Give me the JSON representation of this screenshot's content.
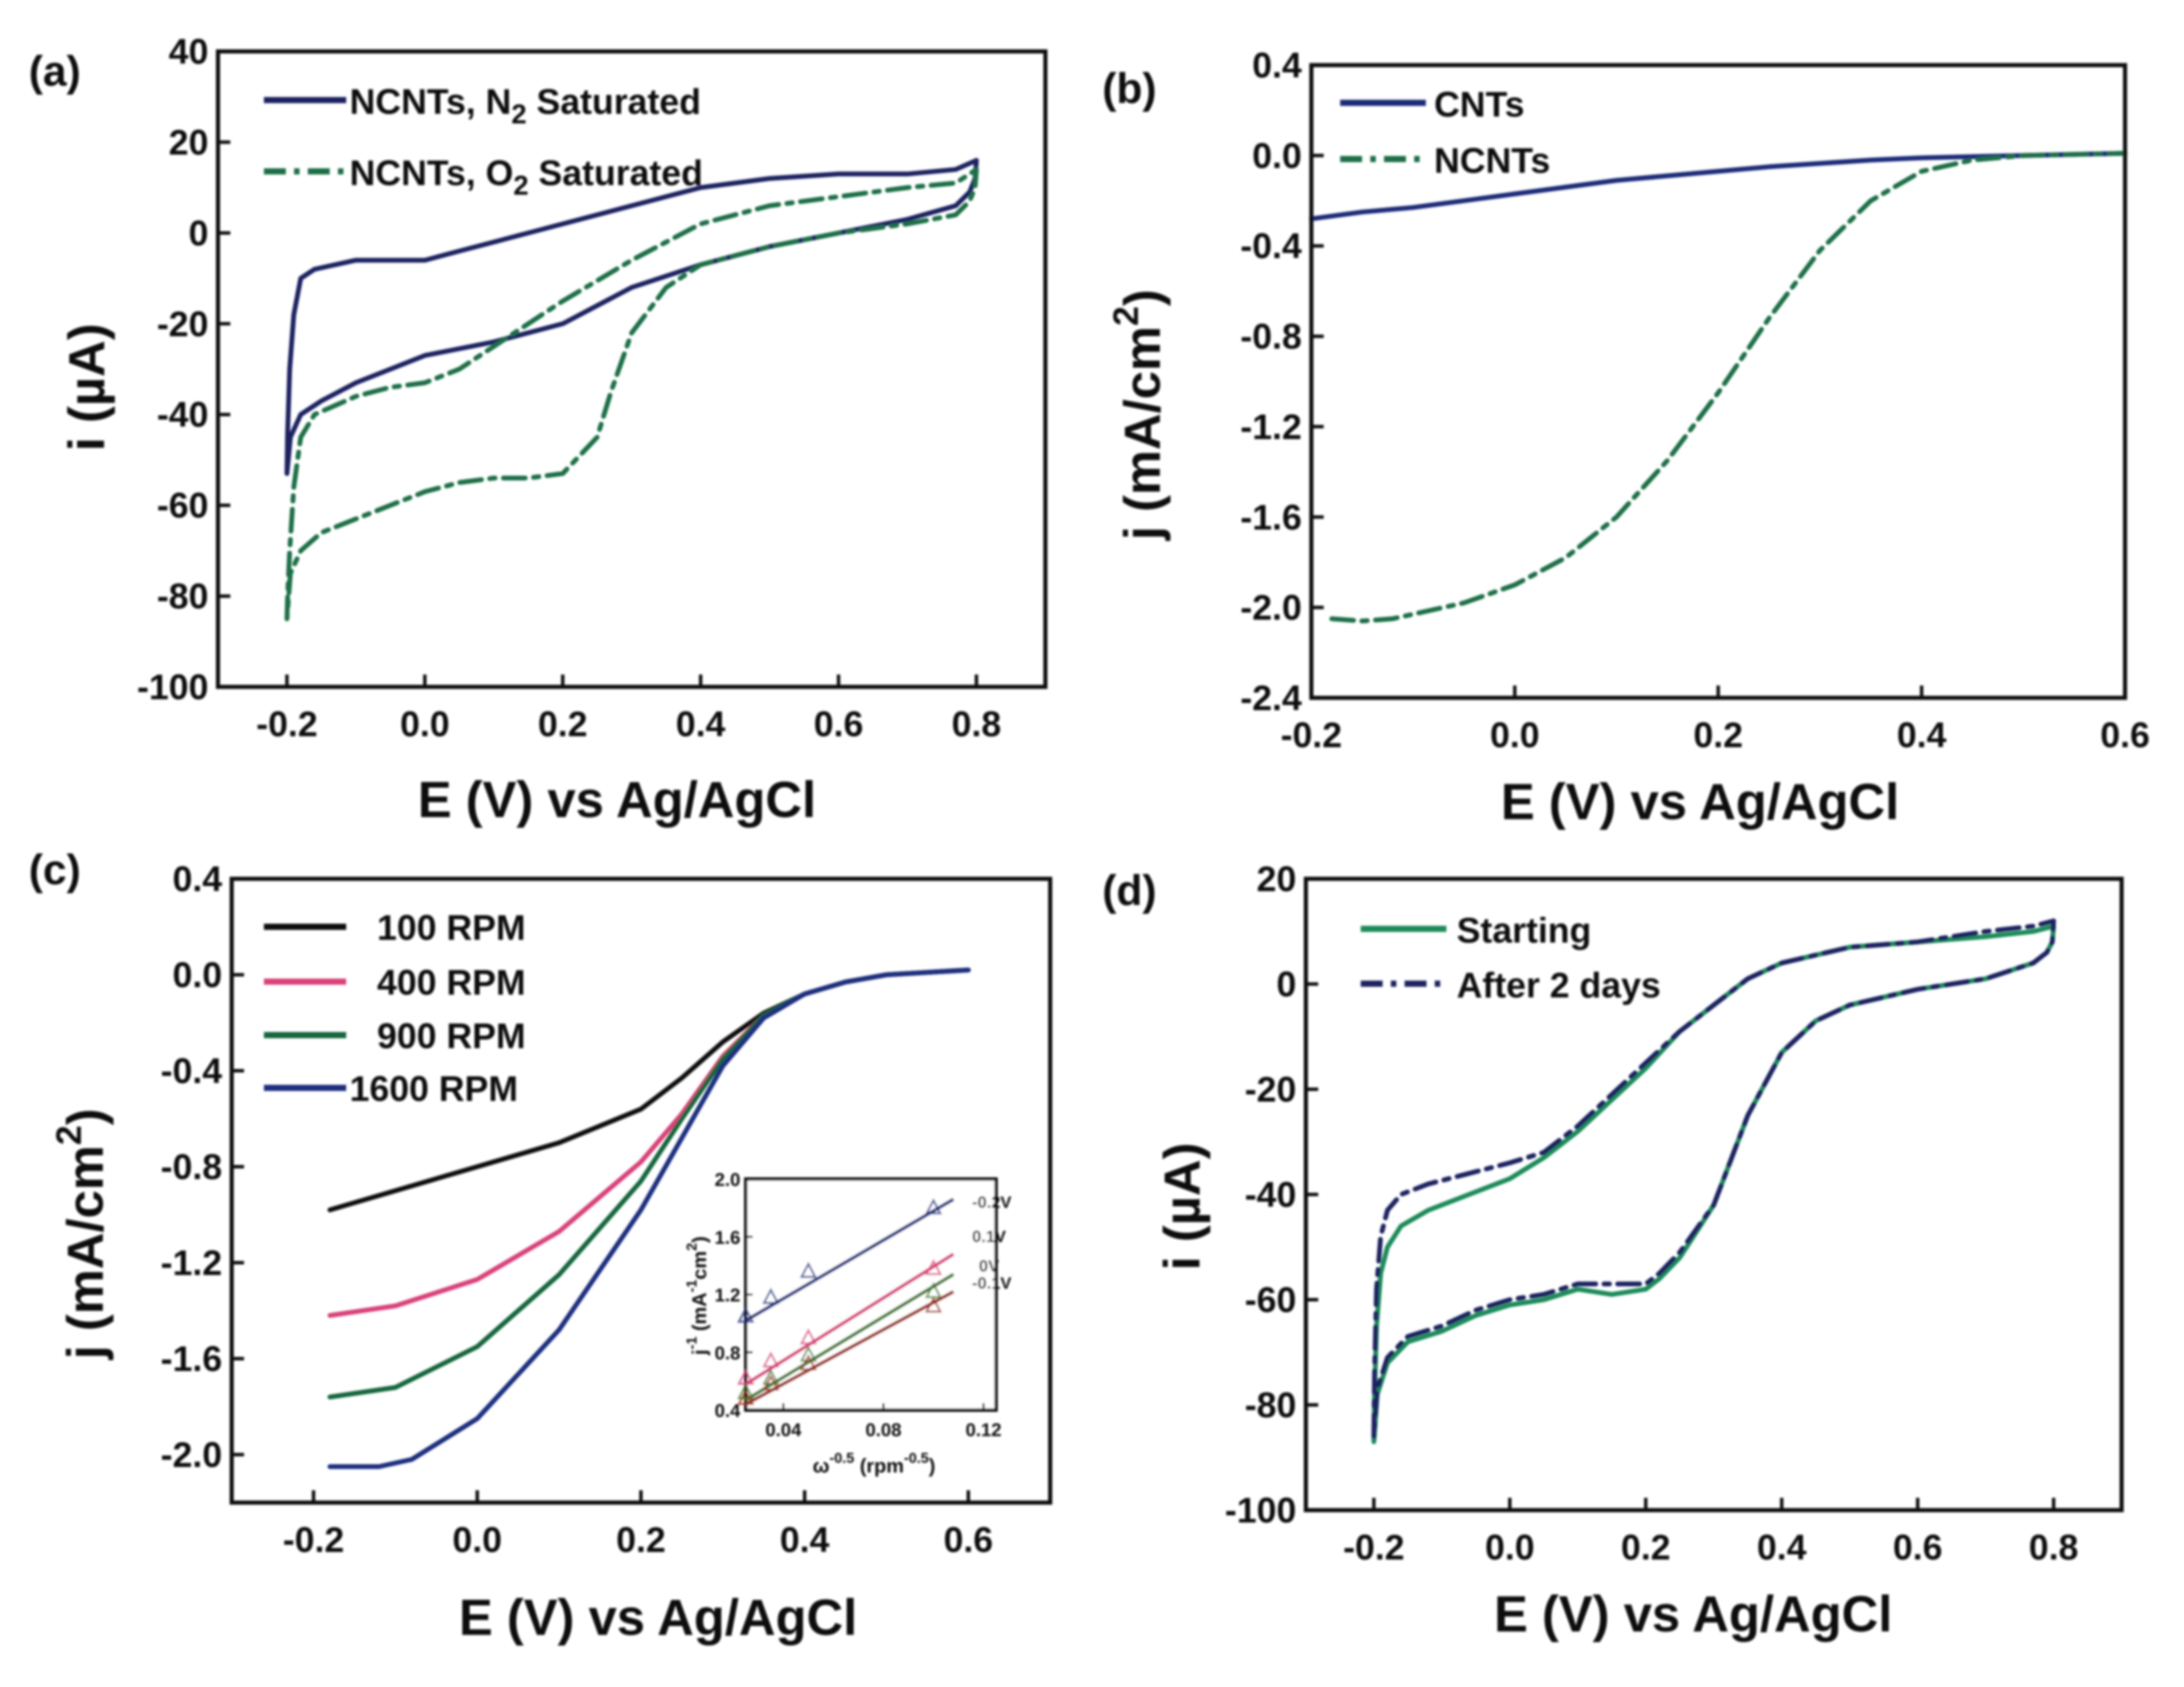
{
  "chart_data": [
    {
      "panel": "(a)",
      "type": "line",
      "xlabel": "E (V) vs Ag/AgCl",
      "ylabel": "i (µA)",
      "xlim": [
        -0.3,
        0.9
      ],
      "ylim": [
        -100,
        40
      ],
      "xticks": [
        -0.2,
        0.0,
        0.2,
        0.4,
        0.6,
        0.8
      ],
      "yticks": [
        -100,
        -80,
        -60,
        -40,
        -20,
        0,
        20,
        40
      ],
      "xtick_labels": [
        "-0.2",
        "0.0",
        "0.2",
        "0.4",
        "0.6",
        "0.8"
      ],
      "ytick_labels": [
        "-100",
        "-80",
        "-60",
        "-40",
        "-20",
        "0",
        "20",
        "40"
      ],
      "legend_pos": "top-left",
      "series": [
        {
          "name": "NCNTs,  N2 Saturated",
          "label_main": "NCNTs,  N",
          "label_sub": "2",
          "label_rest": " Saturated",
          "style": "solid",
          "color": "#1c2460",
          "x": [
            -0.2,
            -0.199,
            -0.196,
            -0.19,
            -0.18,
            -0.16,
            -0.13,
            -0.1,
            -0.05,
            0.0,
            0.05,
            0.1,
            0.2,
            0.3,
            0.4,
            0.5,
            0.6,
            0.7,
            0.77,
            0.8,
            0.798,
            0.79,
            0.77,
            0.7,
            0.6,
            0.5,
            0.4,
            0.3,
            0.2,
            0.1,
            0.0,
            -0.05,
            -0.1,
            -0.15,
            -0.18,
            -0.195,
            -0.2
          ],
          "y": [
            -53,
            -44,
            -30,
            -18,
            -10,
            -8,
            -7,
            -6,
            -6,
            -6,
            -4,
            -2,
            2,
            6,
            10,
            12,
            13,
            13,
            14,
            16,
            12,
            9,
            6,
            3,
            0,
            -3,
            -7,
            -12,
            -20,
            -24,
            -27,
            -30,
            -33,
            -37,
            -40,
            -45,
            -53
          ]
        },
        {
          "name": "NCNTs,  O2 Saturated",
          "label_main": "NCNTs,  O",
          "label_sub": "2",
          "label_rest": " Saturated",
          "style": "dashdot",
          "color": "#1a6e46",
          "x": [
            -0.2,
            -0.199,
            -0.196,
            -0.19,
            -0.18,
            -0.16,
            -0.13,
            -0.1,
            -0.05,
            0.0,
            0.05,
            0.1,
            0.2,
            0.3,
            0.4,
            0.5,
            0.6,
            0.7,
            0.77,
            0.8,
            0.798,
            0.79,
            0.77,
            0.7,
            0.6,
            0.5,
            0.4,
            0.35,
            0.3,
            0.27,
            0.25,
            0.2,
            0.15,
            0.1,
            0.05,
            0.0,
            -0.05,
            -0.1,
            -0.15,
            -0.18,
            -0.195,
            -0.2
          ],
          "y": [
            -85,
            -80,
            -70,
            -56,
            -45,
            -40,
            -38,
            -36,
            -34,
            -33,
            -30,
            -25,
            -15,
            -6,
            2,
            6,
            8,
            10,
            11,
            14,
            10,
            7,
            4,
            2,
            0,
            -3,
            -7,
            -12,
            -22,
            -35,
            -45,
            -53,
            -54,
            -54,
            -55,
            -57,
            -60,
            -63,
            -66,
            -70,
            -75,
            -85
          ]
        }
      ]
    },
    {
      "panel": "(b)",
      "type": "line",
      "xlabel": "E (V) vs Ag/AgCl",
      "ylabel": "j (mA/cm2)",
      "ylabel_main": "j (mA/cm",
      "ylabel_sup": "2",
      "ylabel_end": ")",
      "xlim": [
        -0.2,
        0.6
      ],
      "ylim": [
        -2.4,
        0.4
      ],
      "xticks": [
        -0.2,
        0.0,
        0.2,
        0.4,
        0.6
      ],
      "yticks": [
        -2.4,
        -2.0,
        -1.6,
        -1.2,
        -0.8,
        -0.4,
        0.0,
        0.4
      ],
      "xtick_labels": [
        "-0.2",
        "0.0",
        "0.2",
        "0.4",
        "0.6"
      ],
      "ytick_labels": [
        "-2.4",
        "-2.0",
        "-1.6",
        "-1.2",
        "-0.8",
        "-0.4",
        "0.0",
        "0.4"
      ],
      "legend_pos": "top-left",
      "series": [
        {
          "name": "CNTs",
          "style": "solid",
          "color": "#1c2a78",
          "x": [
            -0.2,
            -0.15,
            -0.1,
            -0.05,
            0.0,
            0.05,
            0.1,
            0.15,
            0.2,
            0.25,
            0.3,
            0.35,
            0.4,
            0.45,
            0.5,
            0.55,
            0.6
          ],
          "y": [
            -0.28,
            -0.25,
            -0.23,
            -0.2,
            -0.17,
            -0.14,
            -0.11,
            -0.09,
            -0.07,
            -0.05,
            -0.035,
            -0.02,
            -0.01,
            -0.005,
            0.0,
            0.005,
            0.01
          ]
        },
        {
          "name": "NCNTs",
          "style": "dashdot",
          "color": "#1a6e46",
          "x": [
            -0.18,
            -0.15,
            -0.12,
            -0.1,
            -0.05,
            0.0,
            0.05,
            0.1,
            0.15,
            0.2,
            0.25,
            0.3,
            0.35,
            0.4,
            0.45,
            0.5,
            0.55,
            0.6
          ],
          "y": [
            -2.05,
            -2.06,
            -2.05,
            -2.03,
            -1.98,
            -1.9,
            -1.78,
            -1.6,
            -1.35,
            -1.05,
            -0.72,
            -0.42,
            -0.2,
            -0.07,
            -0.02,
            0.0,
            0.005,
            0.01
          ]
        }
      ]
    },
    {
      "panel": "(c)",
      "type": "line",
      "xlabel": "E (V) vs Ag/AgCl",
      "ylabel": "j (mA/cm2)",
      "ylabel_main": "j (mA/cm",
      "ylabel_sup": "2",
      "ylabel_end": ")",
      "xlim": [
        -0.3,
        0.7
      ],
      "ylim": [
        -2.2,
        0.4
      ],
      "xticks": [
        -0.2,
        0.0,
        0.2,
        0.4,
        0.6
      ],
      "yticks": [
        -2.0,
        -1.6,
        -1.2,
        -0.8,
        -0.4,
        0.0,
        0.4
      ],
      "xtick_labels": [
        "-0.2",
        "0.0",
        "0.2",
        "0.4",
        "0.6"
      ],
      "ytick_labels": [
        "-2.0",
        "-1.6",
        "-1.2",
        "-0.8",
        "-0.4",
        "0.0",
        "0.4"
      ],
      "legend_pos": "top-left",
      "series": [
        {
          "name": "100 RPM",
          "style": "solid",
          "color": "#111111",
          "x": [
            -0.18,
            -0.1,
            0.0,
            0.1,
            0.2,
            0.25,
            0.3,
            0.35,
            0.4,
            0.45,
            0.5,
            0.55,
            0.6
          ],
          "y": [
            -0.98,
            -0.9,
            -0.8,
            -0.7,
            -0.56,
            -0.43,
            -0.28,
            -0.16,
            -0.08,
            -0.03,
            0.0,
            0.01,
            0.02
          ]
        },
        {
          "name": "400 RPM",
          "style": "solid",
          "color": "#d8427a",
          "x": [
            -0.18,
            -0.1,
            0.0,
            0.1,
            0.2,
            0.25,
            0.3,
            0.35,
            0.4,
            0.45,
            0.5,
            0.55,
            0.6
          ],
          "y": [
            -1.42,
            -1.38,
            -1.27,
            -1.07,
            -0.78,
            -0.58,
            -0.34,
            -0.17,
            -0.08,
            -0.03,
            0.0,
            0.01,
            0.02
          ]
        },
        {
          "name": "900 RPM",
          "style": "solid",
          "color": "#17663e",
          "x": [
            -0.18,
            -0.1,
            0.0,
            0.1,
            0.2,
            0.25,
            0.3,
            0.35,
            0.4,
            0.45,
            0.5,
            0.55,
            0.6
          ],
          "y": [
            -1.76,
            -1.72,
            -1.55,
            -1.25,
            -0.86,
            -0.6,
            -0.35,
            -0.17,
            -0.08,
            -0.03,
            0.0,
            0.01,
            0.02
          ]
        },
        {
          "name": "1600 RPM",
          "style": "solid",
          "color": "#1c2e7e",
          "x": [
            -0.18,
            -0.12,
            -0.08,
            0.0,
            0.1,
            0.2,
            0.25,
            0.3,
            0.35,
            0.4,
            0.45,
            0.5,
            0.55,
            0.6
          ],
          "y": [
            -2.05,
            -2.05,
            -2.02,
            -1.85,
            -1.48,
            -0.98,
            -0.68,
            -0.38,
            -0.18,
            -0.08,
            -0.03,
            0.0,
            0.01,
            0.02
          ]
        }
      ],
      "inset": {
        "type": "scatter",
        "xlabel": "ω-0.5 (rpm-0.5)",
        "xlabel_main": "ω",
        "xlabel_sup1": "-0.5",
        "xlabel_mid": " (rpm",
        "xlabel_sup2": "-0.5",
        "xlabel_end": ")",
        "ylabel": "j-1 (mA-1cm2)",
        "ylabel_main": "j",
        "ylabel_sup1": "-1",
        "ylabel_mid": " (mA",
        "ylabel_sup2": "-1",
        "ylabel_mid2": "cm",
        "ylabel_sup3": "2",
        "ylabel_end": ")",
        "xlim": [
          0.025,
          0.125
        ],
        "ylim": [
          0.4,
          2.0
        ],
        "xticks": [
          0.04,
          0.08,
          0.12
        ],
        "yticks": [
          0.4,
          0.8,
          1.2,
          1.6,
          2.0
        ],
        "xtick_labels": [
          "0.04",
          "0.08",
          "0.12"
        ],
        "ytick_labels": [
          "0.4",
          "0.8",
          "1.2",
          "1.6",
          "2.0"
        ],
        "x_points": [
          0.025,
          0.035,
          0.05,
          0.1
        ],
        "series": [
          {
            "name": "-0.2V",
            "color": "#1c2e7e",
            "y": [
              1.05,
              1.18,
              1.36,
              1.8
            ],
            "fit": [
              1.02,
              1.86
            ]
          },
          {
            "name": "0.1V",
            "color": "#d8427a",
            "y": [
              0.62,
              0.74,
              0.9,
              1.38
            ],
            "fit": [
              0.58,
              1.48
            ]
          },
          {
            "name": "0V",
            "color": "#3f7a2a",
            "y": [
              0.52,
              0.62,
              0.78,
              1.22
            ],
            "fit": [
              0.47,
              1.34
            ]
          },
          {
            "name": "-0.1V",
            "color": "#9a2e1a",
            "y": [
              0.48,
              0.58,
              0.72,
              1.12
            ],
            "fit": [
              0.44,
              1.22
            ]
          }
        ]
      }
    },
    {
      "panel": "(d)",
      "type": "line",
      "xlabel": "E (V) vs Ag/AgCl",
      "ylabel": "i (µA)",
      "xlim": [
        -0.3,
        0.9
      ],
      "ylim": [
        -100,
        20
      ],
      "xticks": [
        -0.2,
        0.0,
        0.2,
        0.4,
        0.6,
        0.8
      ],
      "yticks": [
        -100,
        -80,
        -60,
        -40,
        -20,
        0,
        20
      ],
      "xtick_labels": [
        "-0.2",
        "0.0",
        "0.2",
        "0.4",
        "0.6",
        "0.8"
      ],
      "ytick_labels": [
        "-100",
        "-80",
        "-60",
        "-40",
        "-20",
        "0",
        "20"
      ],
      "legend_pos": "top-left",
      "series": [
        {
          "name": "Starting",
          "style": "solid",
          "color": "#1f8a5a",
          "x": [
            -0.2,
            -0.199,
            -0.196,
            -0.19,
            -0.18,
            -0.16,
            -0.12,
            -0.06,
            0.0,
            0.05,
            0.1,
            0.15,
            0.2,
            0.25,
            0.3,
            0.35,
            0.4,
            0.5,
            0.6,
            0.7,
            0.77,
            0.8,
            0.798,
            0.79,
            0.77,
            0.7,
            0.6,
            0.5,
            0.45,
            0.4,
            0.35,
            0.3,
            0.25,
            0.22,
            0.2,
            0.15,
            0.1,
            0.05,
            0.0,
            -0.05,
            -0.1,
            -0.15,
            -0.18,
            -0.195,
            -0.2
          ],
          "y": [
            -87,
            -78,
            -65,
            -55,
            -50,
            -46,
            -43,
            -40,
            -37,
            -33,
            -28,
            -22,
            -16,
            -9,
            -4,
            1,
            4,
            7,
            8,
            9,
            10,
            11,
            8,
            6,
            4,
            1,
            -1,
            -4,
            -7,
            -13,
            -25,
            -42,
            -52,
            -56,
            -58,
            -59,
            -58,
            -60,
            -61,
            -63,
            -66,
            -68,
            -72,
            -78,
            -87
          ]
        },
        {
          "name": "After 2 days",
          "style": "dashdot",
          "color": "#1c2460",
          "x": [
            -0.2,
            -0.199,
            -0.196,
            -0.19,
            -0.18,
            -0.16,
            -0.12,
            -0.06,
            0.0,
            0.05,
            0.1,
            0.15,
            0.2,
            0.25,
            0.3,
            0.35,
            0.4,
            0.5,
            0.6,
            0.7,
            0.77,
            0.8,
            0.798,
            0.79,
            0.77,
            0.7,
            0.6,
            0.5,
            0.45,
            0.4,
            0.35,
            0.3,
            0.25,
            0.22,
            0.2,
            0.15,
            0.1,
            0.05,
            0.0,
            -0.05,
            -0.1,
            -0.15,
            -0.18,
            -0.195,
            -0.2
          ],
          "y": [
            -86,
            -74,
            -58,
            -48,
            -43,
            -40,
            -38,
            -36,
            -34,
            -32,
            -27,
            -21,
            -15,
            -9,
            -4,
            1,
            4,
            7,
            8,
            10,
            11,
            12,
            8,
            6,
            4,
            1,
            -1,
            -4,
            -7,
            -13,
            -25,
            -42,
            -51,
            -55,
            -57,
            -57,
            -57,
            -59,
            -60,
            -62,
            -65,
            -67,
            -71,
            -77,
            -86
          ]
        }
      ]
    }
  ]
}
